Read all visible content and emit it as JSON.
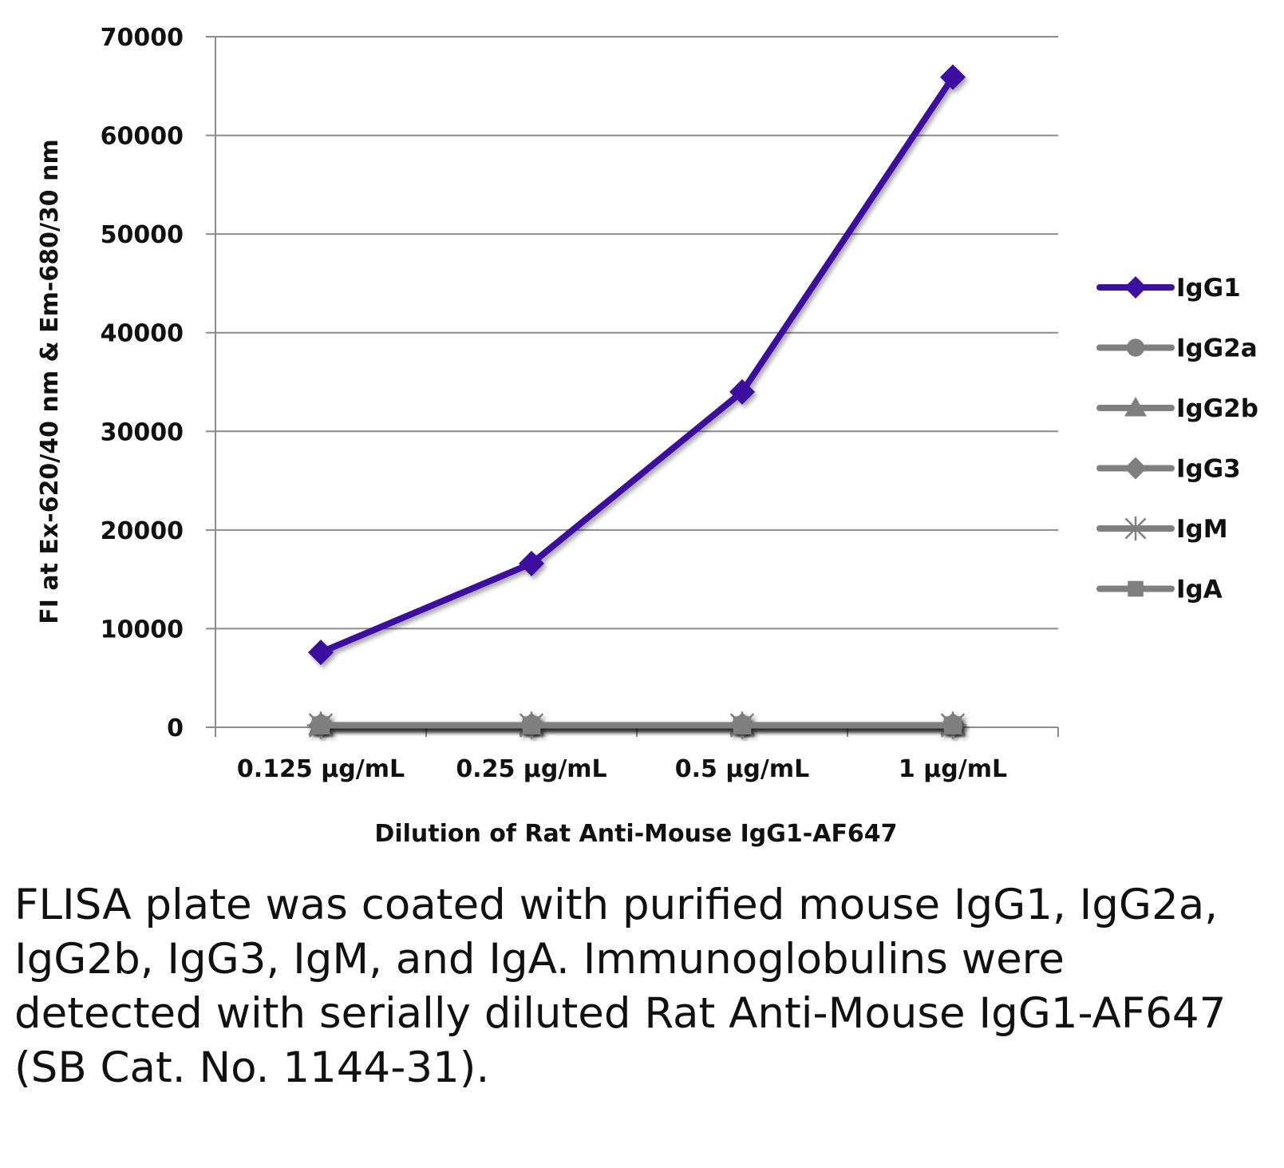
{
  "chart_data": {
    "type": "line",
    "categories": [
      "0.125 µg/mL",
      "0.25 µg/mL",
      "0.5 µg/mL",
      "1 µg/mL"
    ],
    "series": [
      {
        "name": "IgG1",
        "color": "#3d0fa0",
        "marker": "diamond",
        "values": [
          7600,
          16600,
          34000,
          65900
        ]
      },
      {
        "name": "IgG2a",
        "color": "#7f7f7f",
        "marker": "circle",
        "values": [
          200,
          200,
          200,
          200
        ]
      },
      {
        "name": "IgG2b",
        "color": "#7f7f7f",
        "marker": "triangle",
        "values": [
          200,
          200,
          200,
          200
        ]
      },
      {
        "name": "IgG3",
        "color": "#7f7f7f",
        "marker": "diamond",
        "values": [
          200,
          200,
          200,
          200
        ]
      },
      {
        "name": "IgM",
        "color": "#7f7f7f",
        "marker": "star",
        "values": [
          200,
          200,
          200,
          200
        ]
      },
      {
        "name": "IgA",
        "color": "#7f7f7f",
        "marker": "square",
        "values": [
          200,
          200,
          200,
          200
        ]
      }
    ],
    "title": "",
    "xlabel": "Dilution of Rat Anti-Mouse IgG1-AF647",
    "ylabel": "FI at Ex-620/40 nm & Em-680/30 nm",
    "ylim": [
      0,
      70000
    ],
    "yticks": [
      0,
      10000,
      20000,
      30000,
      40000,
      50000,
      60000,
      70000
    ],
    "grid": true,
    "legend_position": "right"
  },
  "caption": "FLISA plate was coated with purified mouse IgG1, IgG2a, IgG2b, IgG3, IgM, and IgA. Immunoglobulins were detected with serially diluted Rat Anti-Mouse IgG1-AF647 (SB Cat. No. 1144-31)."
}
